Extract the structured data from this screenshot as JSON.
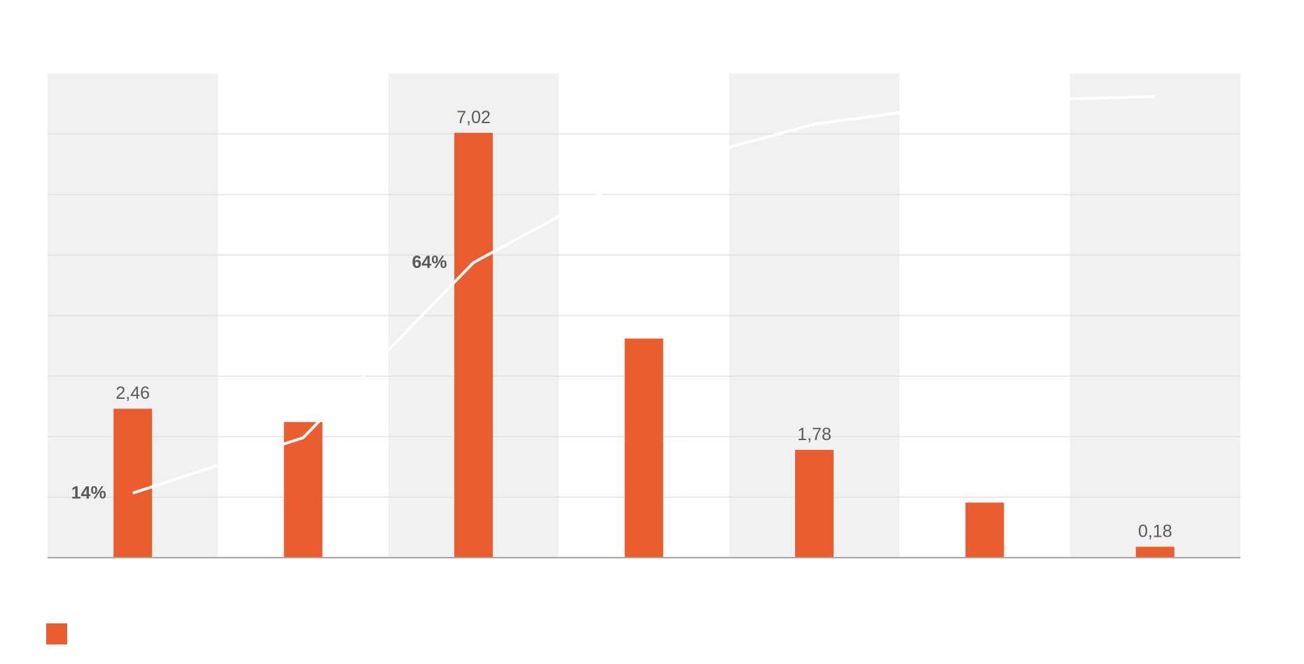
{
  "chart_data": {
    "type": "bar",
    "categories": [
      "",
      "",
      "",
      "",
      "",
      "",
      ""
    ],
    "series": [
      {
        "type": "bar",
        "values": [
          2.46,
          2.24,
          7.02,
          3.62,
          1.78,
          0.91,
          0.18
        ],
        "labels": [
          "2,46",
          "",
          "7,02",
          "",
          "1,78",
          "",
          "0,18"
        ],
        "color": "#EB5D2F"
      },
      {
        "type": "line",
        "values": [
          0.14,
          0.26,
          0.64,
          0.84,
          0.94,
          0.99,
          1.0
        ],
        "labels": [
          "14%",
          "",
          "64%",
          "",
          "",
          "",
          ""
        ],
        "color": "#ffffff"
      }
    ],
    "ylim": [
      0,
      8
    ],
    "y2lim": [
      0,
      1.05
    ],
    "grid": true,
    "legend": "bottom-left",
    "band_color": "#F1F1F1",
    "grid_color": "#D9D9D9",
    "axis_color": "#A6A6A6",
    "label_color": "#595959"
  }
}
